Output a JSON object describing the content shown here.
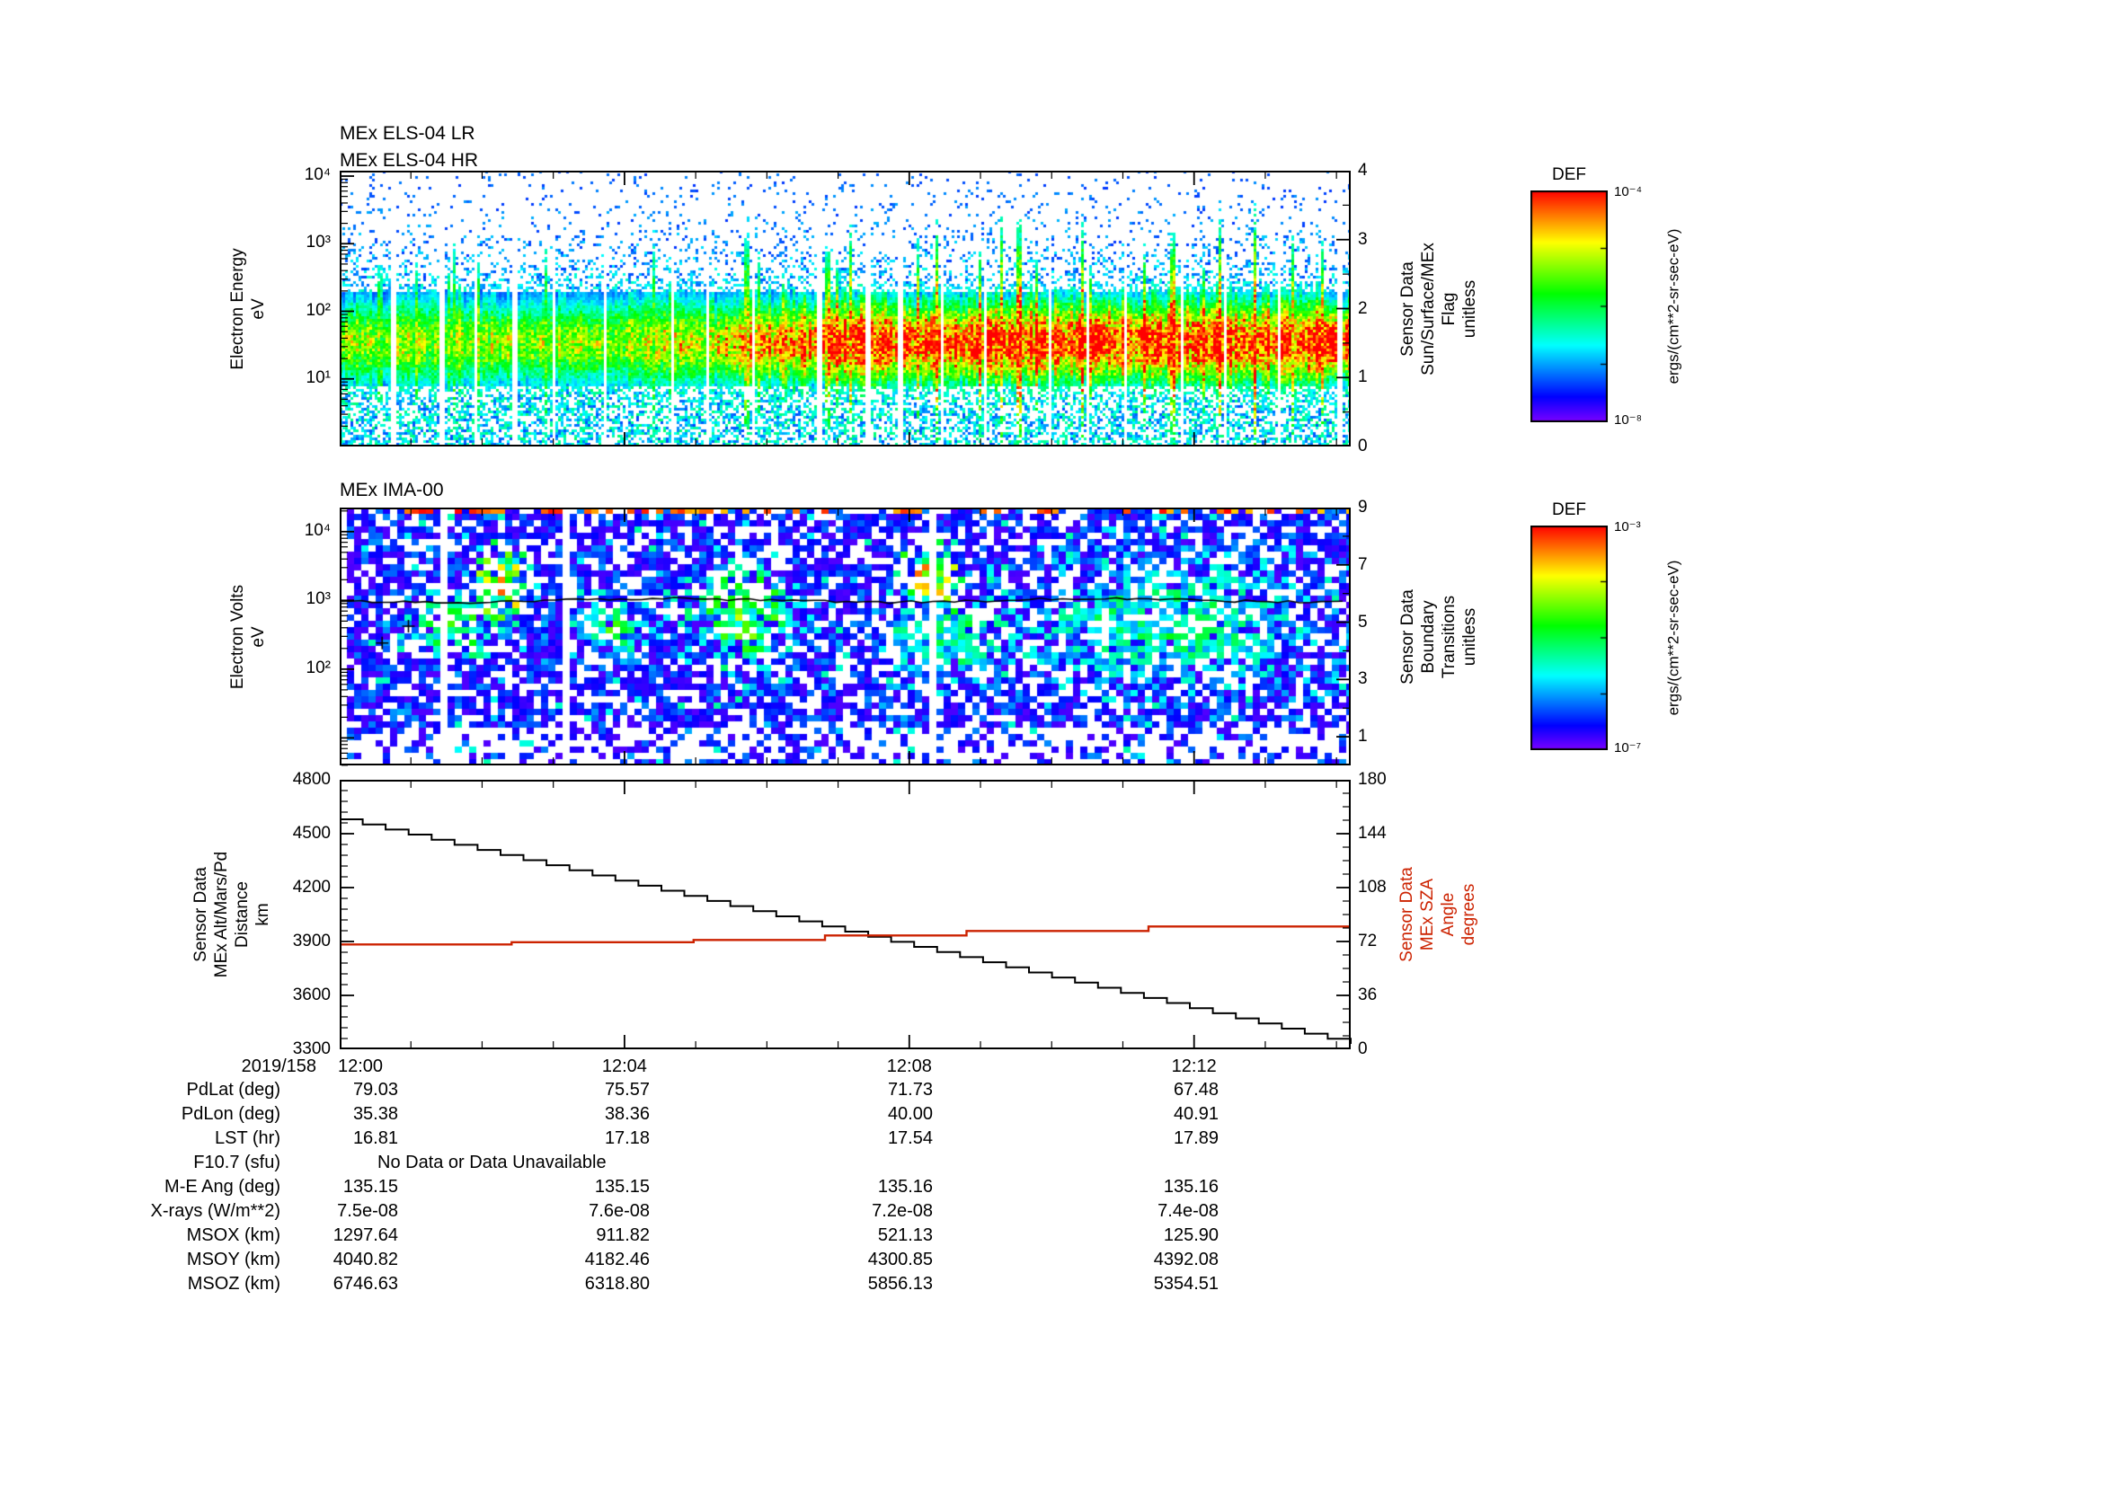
{
  "colors": {
    "background": "#ffffff",
    "frame": "#000000",
    "alt_line": "#000000",
    "sza_line": "#cc2200"
  },
  "panels": {
    "els": {
      "titles": [
        "MEx ELS-04 LR",
        "MEx ELS-04 HR"
      ],
      "ylabel": [
        "Electron Energy",
        "eV"
      ],
      "right_label": [
        "Sensor Data",
        "Sun/Surface/MEx",
        "Flag",
        "unitless"
      ],
      "colorbar": {
        "title": "DEF",
        "unit": "ergs/(cm**2-sr-sec-eV)"
      }
    },
    "ima": {
      "titles": [
        "MEx IMA-00"
      ],
      "ylabel": [
        "Electron Volts",
        "eV"
      ],
      "right_label": [
        "Sensor Data",
        "Boundary",
        "Transitions",
        "unitless"
      ],
      "colorbar": {
        "title": "DEF",
        "unit": "ergs/(cm**2-sr-sec-eV)"
      }
    },
    "line": {
      "left_label": [
        "Sensor Data",
        "MEx Alt/Mars/Pd",
        "Distance",
        "km"
      ],
      "right_label": [
        "Sensor Data",
        "MEx SZA",
        "Angle",
        "degrees"
      ]
    }
  },
  "chart_data": [
    {
      "id": "els_energy_spectrogram",
      "type": "heatmap",
      "title": "MEx ELS-04 LR / MEx ELS-04 HR",
      "ylabel": "Electron Energy eV",
      "y_scale": "log",
      "y_exp_range": [
        0.0,
        4.08
      ],
      "y_tick_exps": [
        1,
        2,
        3,
        4
      ],
      "x_start": "12:00",
      "x_end": "12:14",
      "x_minutes": 14.2,
      "x_tick_minutes": [
        0,
        4,
        8,
        12
      ],
      "x_tick_labels": [
        "12:00",
        "12:04",
        "12:08",
        "12:12"
      ],
      "right_axis": {
        "title": "Sensor Data Sun/Surface/MEx Flag unitless",
        "range": [
          0,
          4
        ],
        "ticks": [
          4,
          3,
          2,
          1,
          0
        ]
      },
      "colorbar": {
        "title": "DEF",
        "unit": "ergs/(cm**2-sr-sec-eV)",
        "exp_range": [
          -8,
          -4
        ]
      },
      "content_summary": "Dense electron flux band between ~10 and 200 eV across whole interval; moderate green/yellow (~1e-5.5) before 12:04 strengthening to saturated red (~1e-4) from ~12:05 to 12:14; sparse blue speckle up to 1e4 eV; regular narrow vertical data gaps",
      "band_model": {
        "center_log10_ev": 1.55,
        "sigma_log10": 0.42,
        "flux_frac_left": 0.62,
        "flux_frac_right": 1.0,
        "ramp_frac": [
          0.28,
          0.52
        ],
        "speckle_above_log10_ev": 2.3,
        "scatter_below_log10_ev": 0.9
      }
    },
    {
      "id": "ima_ion_spectrogram",
      "type": "heatmap",
      "title": "MEx IMA-00",
      "ylabel": "Electron Volts eV",
      "y_scale": "log",
      "y_exp_range": [
        0.6,
        4.35
      ],
      "y_tick_exps": [
        2,
        3,
        4
      ],
      "x_start": "12:00",
      "x_end": "12:14",
      "x_minutes": 14.2,
      "x_tick_minutes": [
        0,
        4,
        8,
        12
      ],
      "x_tick_labels": [
        "12:00",
        "12:04",
        "12:08",
        "12:12"
      ],
      "right_axis": {
        "title": "Sensor Data Boundary Transitions unitless",
        "range": [
          0,
          9
        ],
        "ticks": [
          9,
          7,
          5,
          3,
          1
        ],
        "minor_ticks": [
          0,
          2,
          4,
          6,
          8
        ]
      },
      "colorbar": {
        "title": "DEF",
        "unit": "ergs/(cm**2-sr-sec-eV)",
        "exp_range": [
          -7,
          -3
        ]
      },
      "content_summary": "Patchy low ion flux blue/purple mosaic with many empty cells; enhanced green/red patches near 12:01-12:02, ~12:04, 12:05-12:06 and ~12:08; broad cyan-green region 12:10-12:13; thin black trace near 400-600 eV; red dashes along top edge",
      "gap_fraction": 0.28,
      "clusters": [
        {
          "x_frac": 0.115,
          "y_frac": 0.45,
          "rx": 0.025,
          "ry": 0.1,
          "amp": 0.55
        },
        {
          "x_frac": 0.16,
          "y_frac": 0.3,
          "rx": 0.02,
          "ry": 0.09,
          "amp": 0.9
        },
        {
          "x_frac": 0.27,
          "y_frac": 0.47,
          "rx": 0.02,
          "ry": 0.08,
          "amp": 0.5
        },
        {
          "x_frac": 0.4,
          "y_frac": 0.42,
          "rx": 0.035,
          "ry": 0.14,
          "amp": 0.6
        },
        {
          "x_frac": 0.585,
          "y_frac": 0.28,
          "rx": 0.018,
          "ry": 0.07,
          "amp": 0.95
        },
        {
          "x_frac": 0.6,
          "y_frac": 0.5,
          "rx": 0.045,
          "ry": 0.12,
          "amp": 0.45
        },
        {
          "x_frac": 0.82,
          "y_frac": 0.45,
          "rx": 0.1,
          "ry": 0.17,
          "amp": 0.42
        }
      ],
      "trace_y_frac": 0.36
    },
    {
      "id": "altitude_and_sza",
      "type": "line",
      "x_start": "12:00",
      "x_end": "12:14",
      "x_minutes": 14.2,
      "x_tick_minutes": [
        0,
        4,
        8,
        12
      ],
      "x_tick_labels": [
        "12:00",
        "12:04",
        "12:08",
        "12:12"
      ],
      "left_axis": {
        "title": "Sensor Data MEx Alt/Mars/Pd Distance km",
        "range": [
          3300,
          4800
        ],
        "ticks": [
          4800,
          4500,
          4200,
          3900,
          3600,
          3300
        ]
      },
      "right_axis": {
        "title": "Sensor Data MEx SZA Angle degrees",
        "range": [
          0,
          180
        ],
        "ticks": [
          180,
          144,
          108,
          72,
          36,
          0
        ]
      },
      "series": [
        {
          "name": "MEx Alt/Mars/Pd Distance",
          "axis": "left",
          "color": "#000000",
          "style": "stepped-descent",
          "x_frac": [
            0,
            1
          ],
          "values_km": [
            4580,
            3330
          ]
        },
        {
          "name": "MEx SZA Angle",
          "axis": "right",
          "color": "#cc2200",
          "style": "steps",
          "break_x_frac": [
            0,
            0.17,
            0.35,
            0.48,
            0.62,
            0.8
          ],
          "values_deg": [
            70,
            71.5,
            73,
            76,
            79,
            82
          ]
        }
      ]
    }
  ],
  "table": {
    "date_label": "2019/158",
    "time_ticks": [
      "12:00",
      "12:04",
      "12:08",
      "12:12"
    ],
    "rows": [
      {
        "label": "PdLat (deg)",
        "values": [
          "79.03",
          "75.57",
          "71.73",
          "67.48"
        ]
      },
      {
        "label": "PdLon (deg)",
        "values": [
          "35.38",
          "38.36",
          "40.00",
          "40.91"
        ]
      },
      {
        "label": "LST (hr)",
        "values": [
          "16.81",
          "17.18",
          "17.54",
          "17.89"
        ]
      },
      {
        "label": "F10.7 (sfu)",
        "values": [],
        "note": "No Data or Data Unavailable"
      },
      {
        "label": "M-E Ang (deg)",
        "values": [
          "135.15",
          "135.15",
          "135.16",
          "135.16"
        ]
      },
      {
        "label": "X-rays (W/m**2)",
        "values": [
          "7.5e-08",
          "7.6e-08",
          "7.2e-08",
          "7.4e-08"
        ]
      },
      {
        "label": "MSOX (km)",
        "values": [
          "1297.64",
          "911.82",
          "521.13",
          "125.90"
        ]
      },
      {
        "label": "MSOY (km)",
        "values": [
          "4040.82",
          "4182.46",
          "4300.85",
          "4392.08"
        ]
      },
      {
        "label": "MSOZ (km)",
        "values": [
          "6746.63",
          "6318.80",
          "5856.13",
          "5354.51"
        ]
      }
    ]
  }
}
